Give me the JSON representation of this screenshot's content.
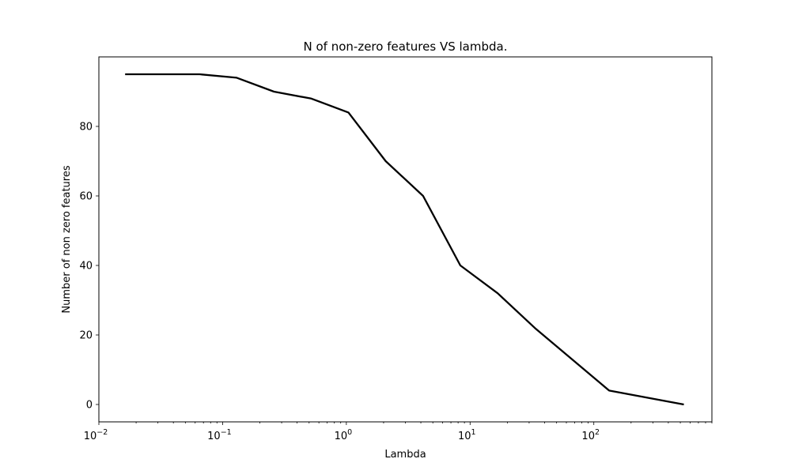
{
  "chart_data": {
    "type": "line",
    "title": "N of non-zero features VS lambda.",
    "xlabel": "Lambda",
    "ylabel": "Number of non zero features",
    "xscale": "log",
    "xlim": [
      0.01,
      900
    ],
    "ylim": [
      -5,
      100
    ],
    "grid": false,
    "x_ticks": [
      {
        "value": 0.01,
        "base": "10",
        "exp": "−2"
      },
      {
        "value": 0.1,
        "base": "10",
        "exp": "−1"
      },
      {
        "value": 1,
        "base": "10",
        "exp": "0"
      },
      {
        "value": 10,
        "base": "10",
        "exp": "1"
      },
      {
        "value": 100,
        "base": "10",
        "exp": "2"
      }
    ],
    "y_ticks": [
      {
        "value": 0,
        "label": "0"
      },
      {
        "value": 20,
        "label": "20"
      },
      {
        "value": 40,
        "label": "40"
      },
      {
        "value": 60,
        "label": "60"
      },
      {
        "value": 80,
        "label": "80"
      }
    ],
    "series": [
      {
        "color": "#000000",
        "x": [
          0.0163,
          0.0651,
          0.13,
          0.26,
          0.521,
          1.04,
          2.08,
          4.17,
          8.34,
          16.7,
          33.4,
          133,
          534
        ],
        "y": [
          95,
          95,
          94,
          90,
          88,
          84,
          70,
          60,
          40,
          32,
          22,
          4,
          0
        ]
      }
    ]
  }
}
